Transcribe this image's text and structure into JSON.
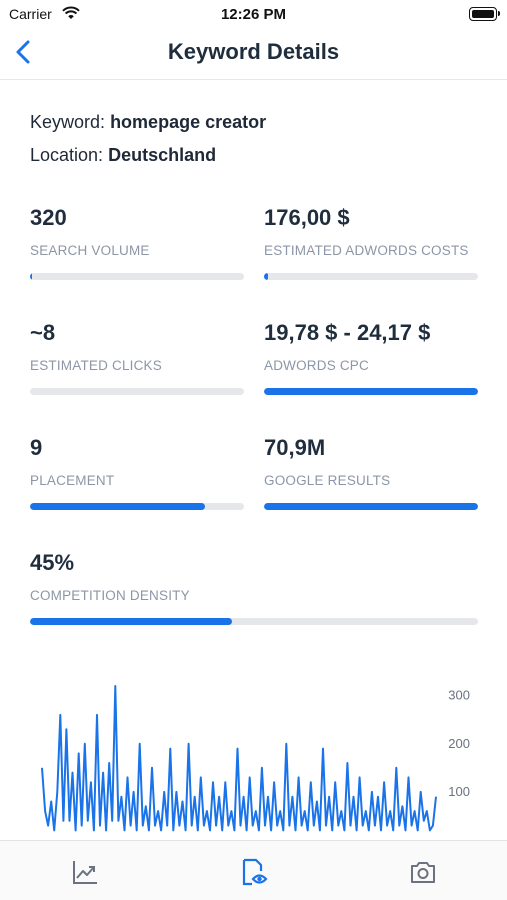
{
  "status_bar": {
    "carrier": "Carrier",
    "time": "12:26 PM"
  },
  "nav": {
    "title": "Keyword Details",
    "back_icon": "chevron-left-icon"
  },
  "info": {
    "keyword_label": "Keyword:",
    "keyword_value": "homepage creator",
    "location_label": "Location:",
    "location_value": "Deutschland"
  },
  "metrics": [
    {
      "value": "320",
      "label": "SEARCH VOLUME",
      "progress": 0.01
    },
    {
      "value": "176,00 $",
      "label": "ESTIMATED ADWORDS COSTS",
      "progress": 0.02
    },
    {
      "value": "~8",
      "label": "ESTIMATED CLICKS",
      "progress": 0.0
    },
    {
      "value": "19,78 $ - 24,17 $",
      "label": "ADWORDS CPC",
      "progress": 1.0
    },
    {
      "value": "9",
      "label": "PLACEMENT",
      "progress": 0.82
    },
    {
      "value": "70,9M",
      "label": "GOOGLE RESULTS",
      "progress": 1.0
    },
    {
      "value": "45%",
      "label": "COMPETITION DENSITY",
      "progress": 0.45
    }
  ],
  "colors": {
    "accent": "#1a73e8",
    "track": "#e5e7eb",
    "label": "#8d96a6",
    "text": "#1f2d3d"
  },
  "chart_data": {
    "type": "line",
    "title": "",
    "xlabel": "",
    "ylabel": "",
    "ylim": [
      0,
      320
    ],
    "y_ticks": [
      "100",
      "200",
      "300"
    ],
    "y_tick_values": [
      100,
      200,
      300
    ],
    "y_axis_position": "right",
    "grid": false,
    "series": [
      {
        "values": [
          150,
          60,
          30,
          80,
          20,
          100,
          260,
          40,
          230,
          40,
          140,
          20,
          180,
          30,
          200,
          40,
          120,
          20,
          260,
          30,
          140,
          20,
          160,
          40,
          320,
          40,
          90,
          20,
          130,
          30,
          100,
          20,
          200,
          30,
          70,
          20,
          150,
          30,
          60,
          20,
          100,
          30,
          190,
          20,
          100,
          30,
          80,
          20,
          200,
          30,
          90,
          20,
          130,
          30,
          60,
          20,
          120,
          30,
          90,
          20,
          120,
          30,
          60,
          20,
          190,
          30,
          90,
          20,
          130,
          30,
          60,
          20,
          150,
          30,
          90,
          20,
          120,
          30,
          60,
          20,
          200,
          30,
          90,
          20,
          130,
          30,
          60,
          20,
          120,
          30,
          80,
          20,
          190,
          30,
          90,
          20,
          120,
          30,
          60,
          20,
          160,
          30,
          90,
          20,
          130,
          30,
          60,
          20,
          100,
          30,
          90,
          20,
          120,
          30,
          60,
          20,
          150,
          30,
          70,
          20,
          130,
          30,
          60,
          20,
          100,
          40,
          60,
          20,
          30,
          90
        ]
      }
    ]
  },
  "tabs": [
    {
      "icon": "trend-chart-icon"
    },
    {
      "icon": "document-eye-icon"
    },
    {
      "icon": "camera-icon"
    }
  ]
}
